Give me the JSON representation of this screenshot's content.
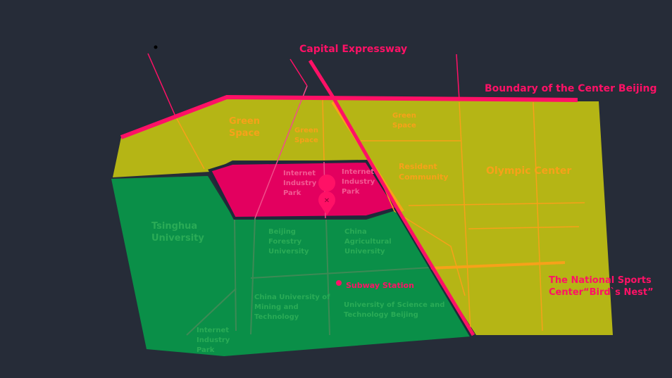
{
  "colors": {
    "background": "#262c38",
    "yellow_zone": "#b5b515",
    "green_zone": "#0a8f48",
    "pink_zone": "#e3005f",
    "accent_pink": "#ff1166",
    "orange": "#f7a11a",
    "green_label": "#2aab56"
  },
  "labels": {
    "capital_expressway": "Capital Expressway",
    "boundary": "Boundary of the Center Beijing",
    "green_space_1": [
      "Green",
      "Space"
    ],
    "green_space_2": [
      "Green",
      "Space"
    ],
    "green_space_3": [
      "Green",
      "Space"
    ],
    "resident_community": [
      "Resident",
      "Community"
    ],
    "olympic_center": "Olympic Center",
    "internet_park_1": [
      "Internet",
      "Industry",
      "Park"
    ],
    "internet_park_2": [
      "Internet",
      "Industry",
      "Park"
    ],
    "internet_park_3": [
      "Internet",
      "Industry",
      "Park"
    ],
    "tsinghua": [
      "Tsinghua",
      "University"
    ],
    "beijing_forestry": [
      "Beijing",
      "Forestry",
      "University"
    ],
    "china_agricultural": [
      "China",
      "Agricultural",
      "University"
    ],
    "subway_station": "Subway Station",
    "china_mining": [
      "China University of",
      "Mining and",
      "Technology"
    ],
    "ustb": [
      "University of Science and",
      "Technology Beijing"
    ],
    "birds_nest": [
      "The National Sports",
      "Center“Bird`s Nest”"
    ],
    "marker_glyph": "✕"
  }
}
